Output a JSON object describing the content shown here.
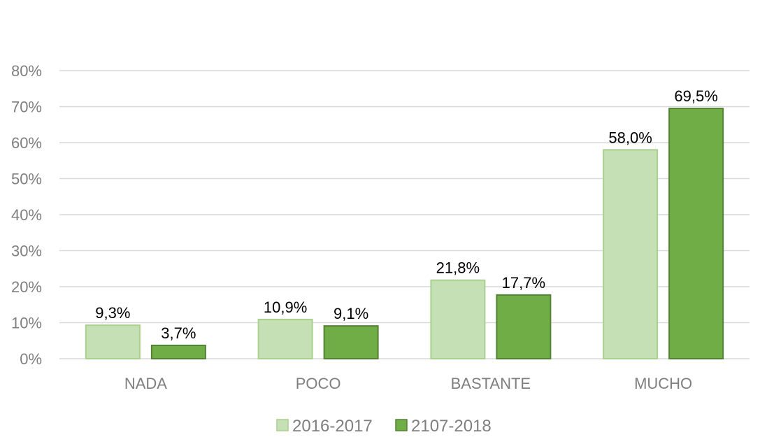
{
  "chart_data": {
    "type": "bar",
    "title": "",
    "xlabel": "",
    "ylabel": "",
    "categories": [
      "NADA",
      "POCO",
      "BASTANTE",
      "MUCHO"
    ],
    "series": [
      {
        "name": "2016-2017",
        "values": [
          9.3,
          10.9,
          21.8,
          58.0
        ],
        "labels": [
          "9,3%",
          "10,9%",
          "21,8%",
          "58,0%"
        ],
        "color": "#c5e0b4",
        "border": "#a9d18e"
      },
      {
        "name": "2107-2018",
        "values": [
          3.7,
          9.1,
          17.7,
          69.5
        ],
        "labels": [
          "3,7%",
          "9,1%",
          "17,7%",
          "69,5%"
        ],
        "color": "#70ad47",
        "border": "#548235"
      }
    ],
    "ylim": [
      0,
      80
    ],
    "yticks": [
      0,
      10,
      20,
      30,
      40,
      50,
      60,
      70,
      80
    ],
    "ytick_labels": [
      "0%",
      "10%",
      "20%",
      "30%",
      "40%",
      "50%",
      "60%",
      "70%",
      "80%"
    ],
    "grid": true,
    "legend": "bottom-center"
  }
}
